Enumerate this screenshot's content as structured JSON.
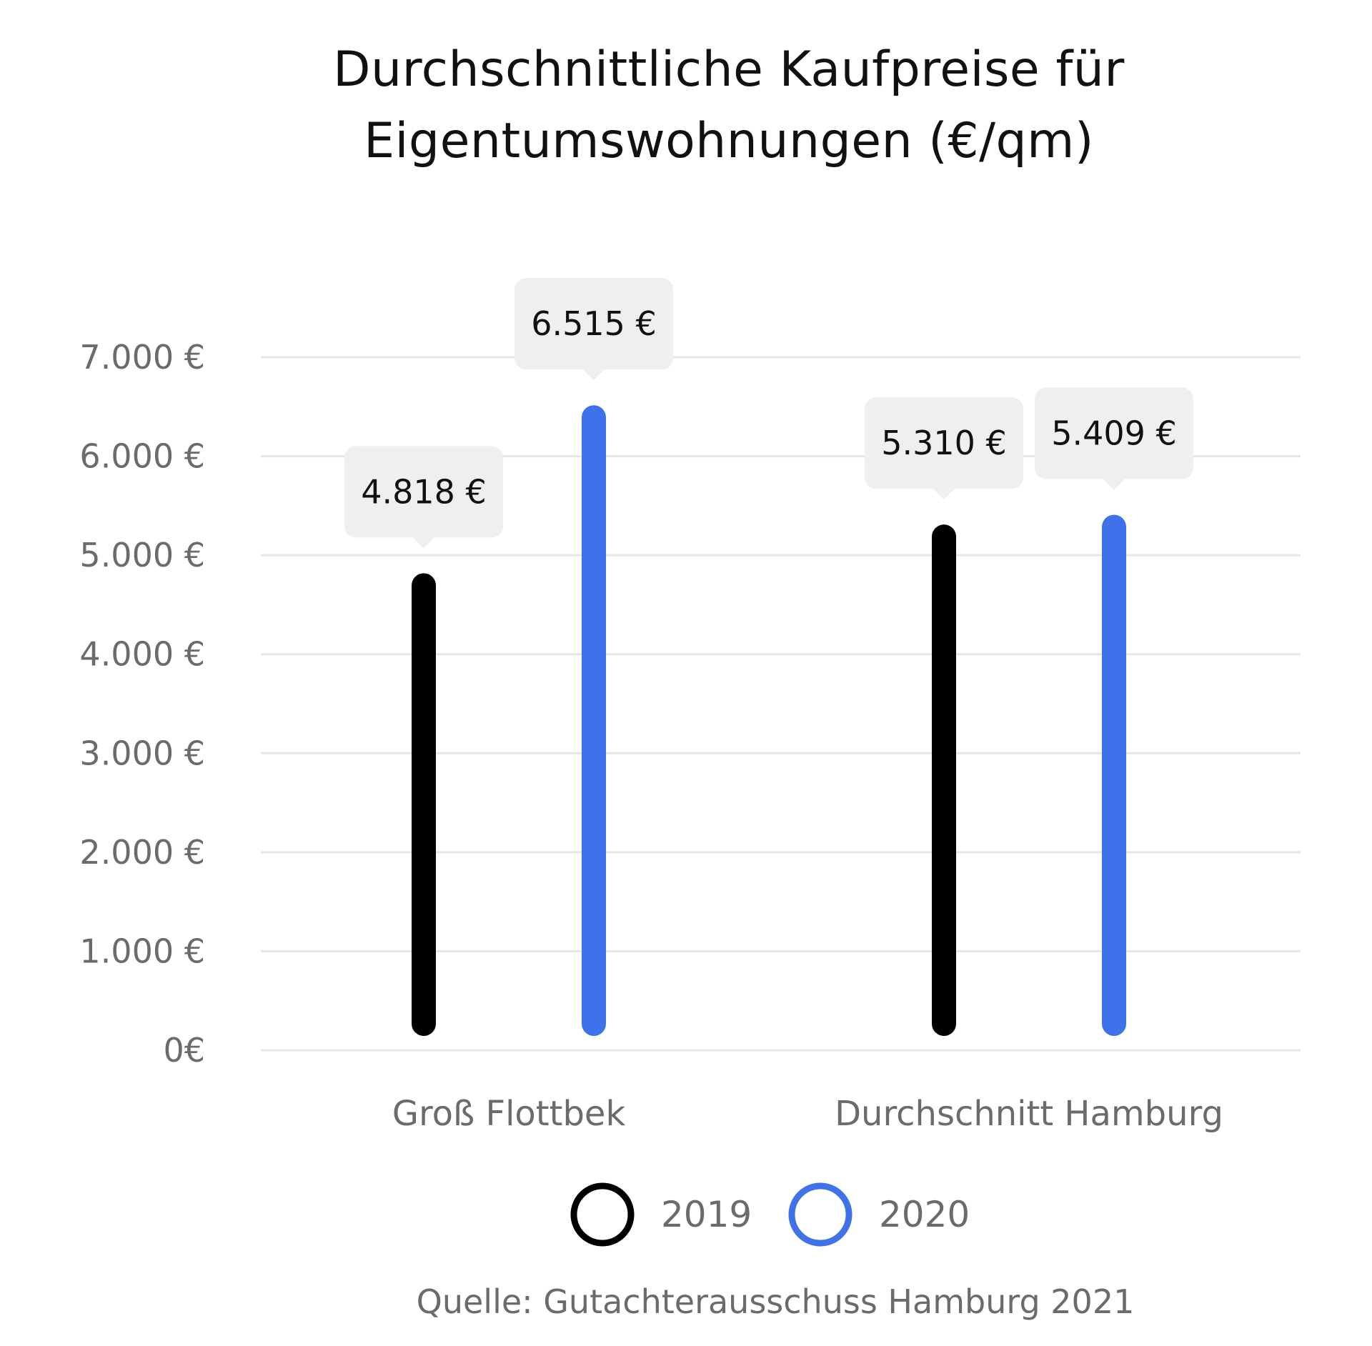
{
  "chart_data": {
    "type": "bar",
    "title_lines": [
      "Durchschnittliche Kaufpreise für",
      "Eigentumswohnungen (€/qm)"
    ],
    "categories": [
      "Groß Flottbek",
      "Durchschnitt Hamburg"
    ],
    "series": [
      {
        "name": "2019",
        "values": [
          4818,
          5310
        ],
        "data_labels": [
          "4.818 €",
          "5.310 €"
        ],
        "color": "#000000"
      },
      {
        "name": "2020",
        "values": [
          6515,
          5409
        ],
        "data_labels": [
          "6.515 €",
          "5.409 €"
        ],
        "color": "#3F72EA"
      }
    ],
    "ylim": [
      0,
      7000
    ],
    "yticks": [
      0,
      1000,
      2000,
      3000,
      4000,
      5000,
      6000,
      7000
    ],
    "ytick_labels": [
      "0€",
      "1.000 €",
      "2.000 €",
      "3.000 €",
      "4.000 €",
      "5.000 €",
      "6.000 €",
      "7.000 €"
    ],
    "grid": true,
    "legend": "bottom-center",
    "source": "Quelle: Gutachterausschuss Hamburg 2021",
    "colors": {
      "grid": "#e6e6e6",
      "axis_text": "#6b6b6b",
      "label_box": "#efefef",
      "label_text": "#111111"
    }
  }
}
